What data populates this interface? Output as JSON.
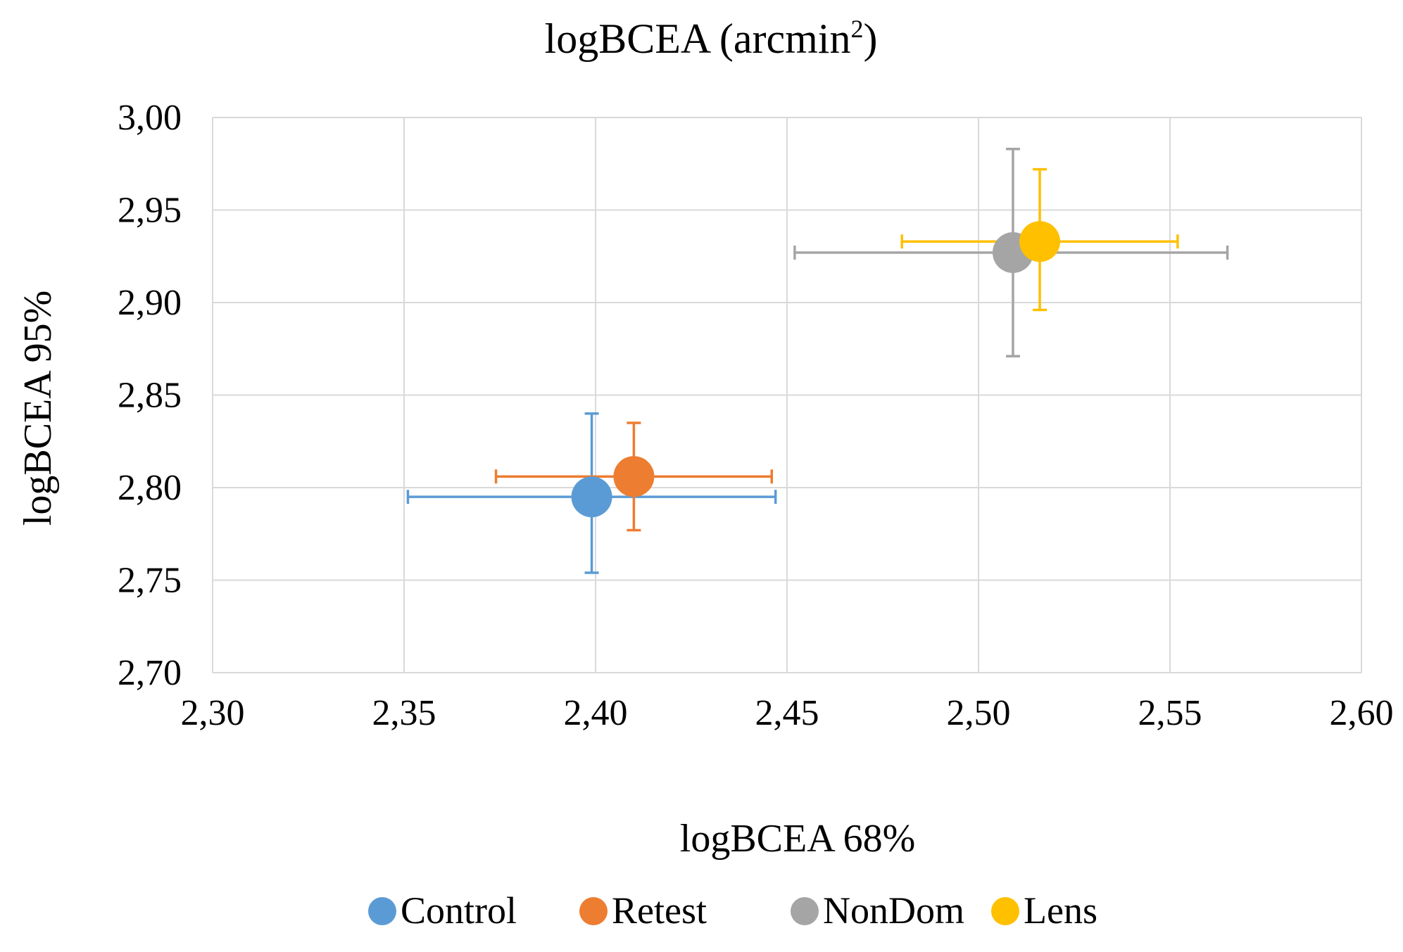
{
  "chart_data": {
    "type": "scatter",
    "title_main": "logBCEA (arcmin",
    "title_sup": "2",
    "title_close": ")",
    "xlabel": "logBCEA 68%",
    "ylabel": "logBCEA 95%",
    "xlim": [
      2.3,
      2.6
    ],
    "ylim": [
      2.7,
      3.0
    ],
    "x_ticks": [
      2.3,
      2.35,
      2.4,
      2.45,
      2.5,
      2.55,
      2.6
    ],
    "y_ticks": [
      2.7,
      2.75,
      2.8,
      2.85,
      2.9,
      2.95,
      3.0
    ],
    "x_tick_labels": [
      "2,30",
      "2,35",
      "2,40",
      "2,45",
      "2,50",
      "2,55",
      "2,60"
    ],
    "y_tick_labels": [
      "2,70",
      "2,75",
      "2,80",
      "2,85",
      "2,90",
      "2,95",
      "3,00"
    ],
    "grid": true,
    "legend_position": "bottom",
    "series": [
      {
        "name": "Control",
        "color": "#5B9BD5",
        "x": 2.399,
        "y": 2.795,
        "x_err": [
          2.351,
          2.447
        ],
        "y_err": [
          2.754,
          2.84
        ]
      },
      {
        "name": "Retest",
        "color": "#ED7D31",
        "x": 2.41,
        "y": 2.806,
        "x_err": [
          2.374,
          2.446
        ],
        "y_err": [
          2.777,
          2.835
        ]
      },
      {
        "name": "NonDom",
        "color": "#A5A5A5",
        "x": 2.509,
        "y": 2.927,
        "x_err": [
          2.452,
          2.565
        ],
        "y_err": [
          2.871,
          2.983
        ]
      },
      {
        "name": "Lens",
        "color": "#FFC000",
        "x": 2.516,
        "y": 2.933,
        "x_err": [
          2.48,
          2.552
        ],
        "y_err": [
          2.896,
          2.972
        ]
      }
    ]
  }
}
